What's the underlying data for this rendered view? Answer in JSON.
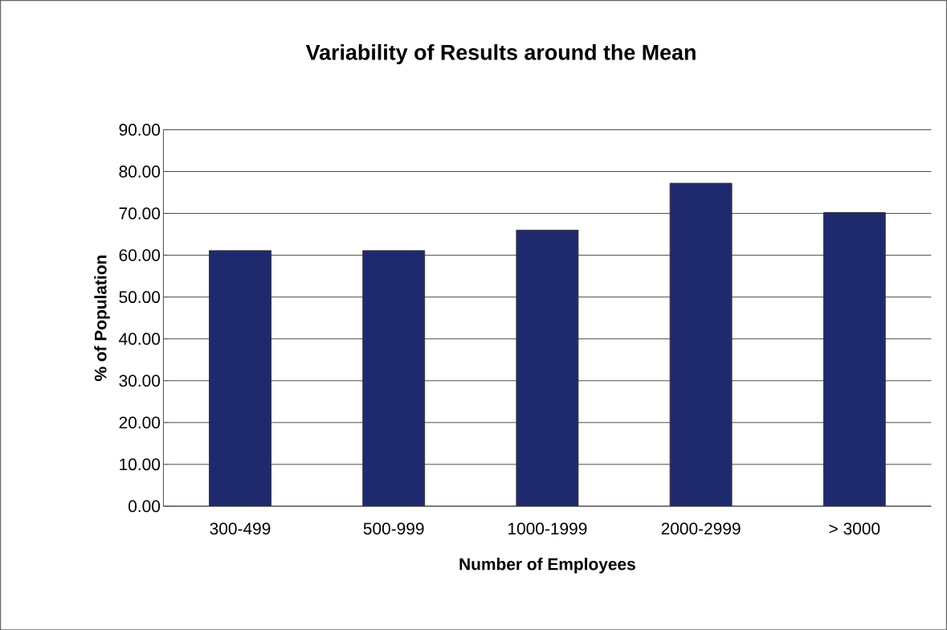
{
  "chart_data": {
    "type": "bar",
    "title": "Variability of Results around the Mean",
    "xlabel": "Number of Employees",
    "ylabel": "% of Population",
    "categories": [
      "300-499",
      "500-999",
      "1000-1999",
      "2000-2999",
      "> 3000"
    ],
    "values": [
      61.1,
      61.1,
      66.0,
      77.2,
      70.2
    ],
    "color": "#1f2a6e",
    "ylim": [
      0,
      90
    ],
    "yticks": [
      {
        "value": 0,
        "label": "0.00"
      },
      {
        "value": 10,
        "label": "10.00"
      },
      {
        "value": 20,
        "label": "20.00"
      },
      {
        "value": 30,
        "label": "30.00"
      },
      {
        "value": 40,
        "label": "40.00"
      },
      {
        "value": 50,
        "label": "50.00"
      },
      {
        "value": 60,
        "label": "60.00"
      },
      {
        "value": 70,
        "label": "70.00"
      },
      {
        "value": 80,
        "label": "80.00"
      },
      {
        "value": 90,
        "label": "90.00"
      }
    ],
    "grid": "y"
  }
}
